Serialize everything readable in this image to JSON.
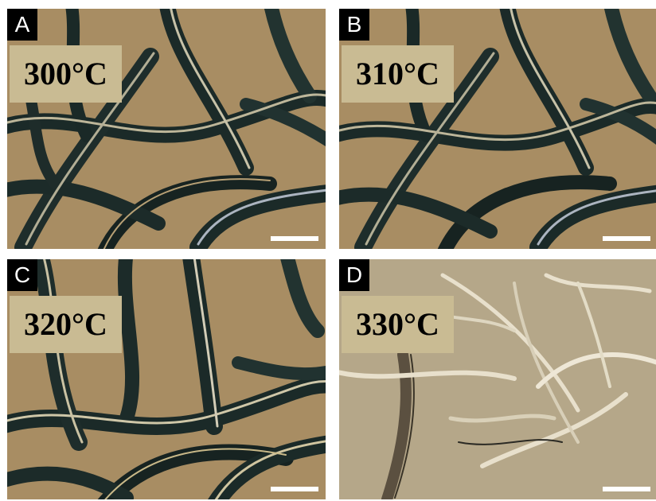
{
  "figure": {
    "panels": [
      {
        "letter": "A",
        "temperature": "300°C"
      },
      {
        "letter": "B",
        "temperature": "310°C"
      },
      {
        "letter": "C",
        "temperature": "320°C"
      },
      {
        "letter": "D",
        "temperature": "330°C"
      }
    ],
    "colors": {
      "background_tan": "#a88d63",
      "fiber_dark": "#1b2a28",
      "label_box": "#c9bb93",
      "panel_d_background": "#b5a789",
      "panel_d_fiber": "#e8e0cc"
    }
  }
}
